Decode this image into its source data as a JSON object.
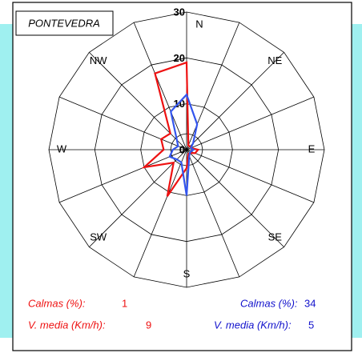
{
  "chart_data": {
    "type": "radar",
    "title": "PONTEVEDRA",
    "categories": [
      "N",
      null,
      "NE",
      null,
      "E",
      null,
      "SE",
      null,
      "S",
      null,
      "SW",
      null,
      "W",
      null,
      "NW",
      null
    ],
    "rlim": [
      0,
      30
    ],
    "rticks": [
      0,
      10,
      20,
      30
    ],
    "grid": true,
    "series": [
      {
        "color": "#ee1111",
        "values": [
          19,
          1,
          1,
          1,
          2.5,
          2,
          1,
          1,
          4,
          11,
          4,
          10,
          5,
          6,
          5,
          18
        ]
      },
      {
        "color": "#3355ee",
        "values": [
          12,
          6,
          2,
          1,
          1.5,
          1,
          1,
          1.5,
          10,
          3,
          3,
          4,
          3,
          2,
          3,
          9
        ]
      }
    ],
    "summary": [
      {
        "color": "#ee1111",
        "items": [
          {
            "label": "Calmas (%):",
            "value": 1
          },
          {
            "label": "V. media (Km/h):",
            "value": 9
          }
        ]
      },
      {
        "color": "#1111cc",
        "items": [
          {
            "label": "Calmas (%):",
            "value": 34
          },
          {
            "label": "V. media (Km/h):",
            "value": 5
          }
        ]
      }
    ]
  }
}
